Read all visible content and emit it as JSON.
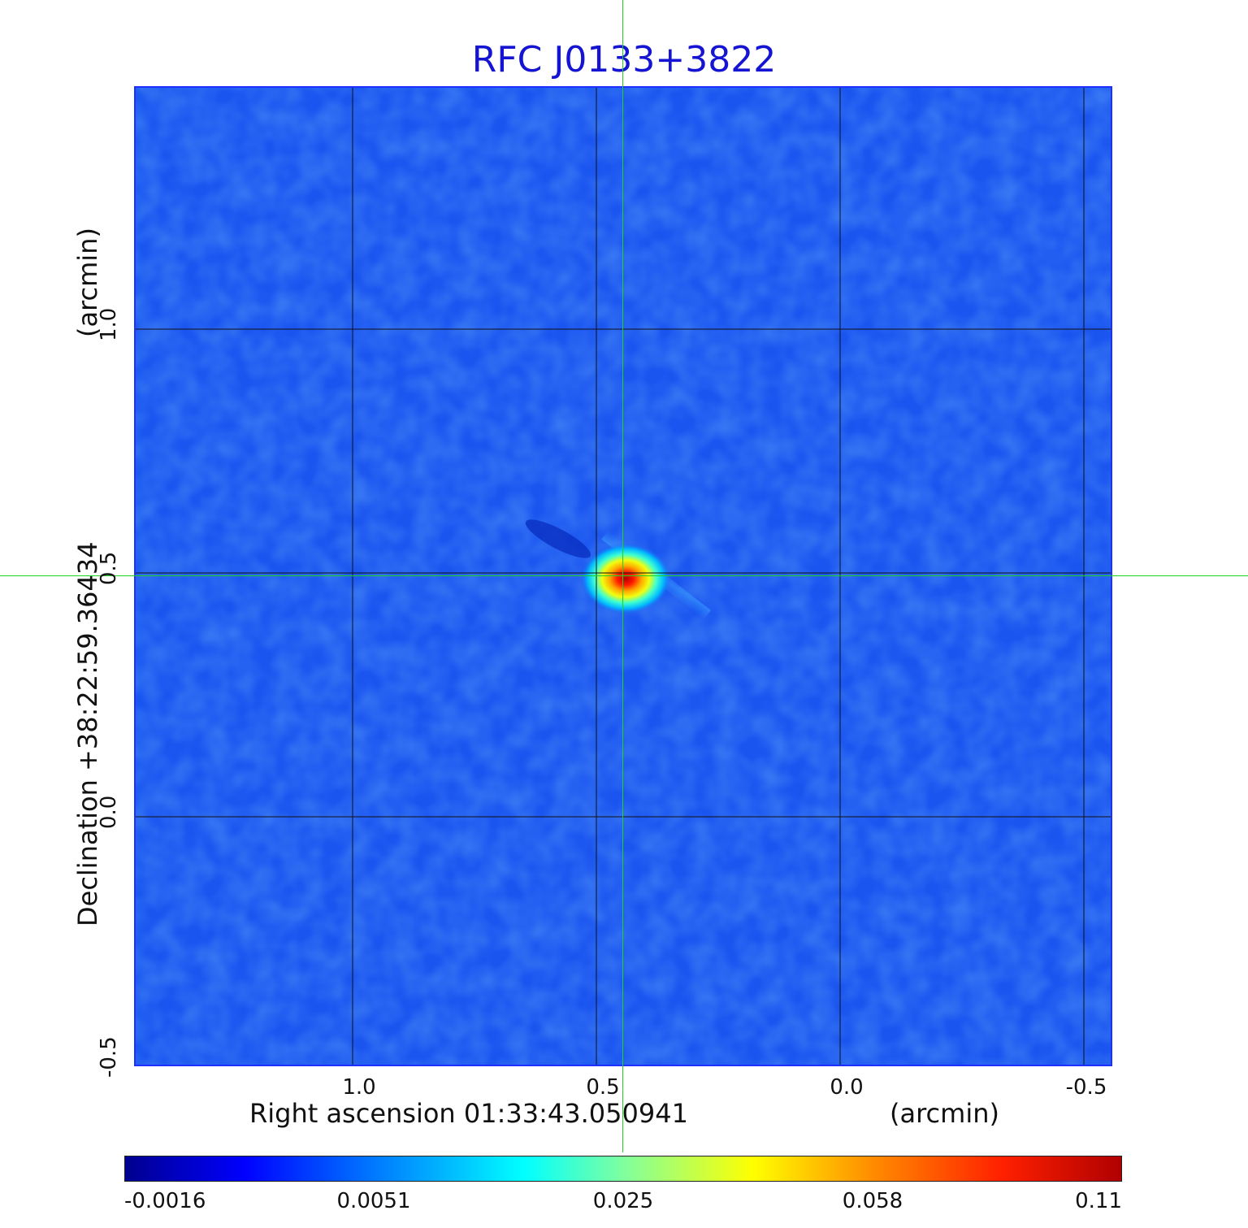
{
  "title": "RFC J0133+3822",
  "x_axis": {
    "label": "Right ascension  01:33:43.050941",
    "units": "(arcmin)",
    "ticks": [
      "1.0",
      "0.5",
      "0.0",
      "-0.5"
    ]
  },
  "y_axis": {
    "label": "Declination  +38:22:59.36434",
    "units": "(arcmin)",
    "ticks": [
      "1.0",
      "0.5",
      "0.0",
      "-0.5"
    ]
  },
  "colorbar": {
    "colormap": "jet",
    "ticks": [
      "-0.0016",
      "0.0051",
      "0.025",
      "0.058",
      "0.11"
    ]
  },
  "colors": {
    "title": "#1414d2",
    "crosshair": "#1fd41f",
    "background_noise": "#1a55f0"
  },
  "source_peak": {
    "ra_offset_arcmin": 0.5,
    "dec_offset_arcmin": 0.5
  }
}
